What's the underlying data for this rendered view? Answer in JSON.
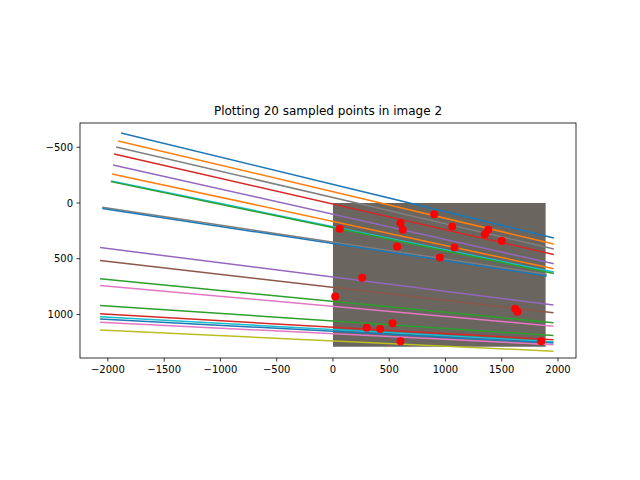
{
  "chart_data": {
    "type": "line",
    "title": "Plotting 20 sampled points in image 2",
    "xlim": [
      -2248,
      2160
    ],
    "ylim": [
      1391,
      -718
    ],
    "xticks": [
      -2000,
      -1500,
      -1000,
      -500,
      0,
      500,
      1000,
      1500,
      2000
    ],
    "yticks": [
      -500,
      0,
      500,
      1000
    ],
    "grid": false,
    "image_extent": {
      "x": [
        0,
        1890
      ],
      "y": [
        0,
        1290
      ]
    },
    "series": [
      {
        "color": "#1f77b4",
        "x": [
          -1883,
          1963
        ],
        "values": [
          -628,
          314
        ]
      },
      {
        "color": "#ff7f0e",
        "x": [
          -1909,
          1963
        ],
        "values": [
          -557,
          368
        ]
      },
      {
        "color": "#7f7f7f",
        "x": [
          -1927,
          1963
        ],
        "values": [
          -503,
          413
        ]
      },
      {
        "color": "#d62728",
        "x": [
          -1945,
          1963
        ],
        "values": [
          -440,
          462
        ]
      },
      {
        "color": "#9467bd",
        "x": [
          -1955,
          1963
        ],
        "values": [
          -341,
          545
        ]
      },
      {
        "color": "#ff7f0e",
        "x": [
          -1963,
          1963
        ],
        "values": [
          -260,
          590
        ]
      },
      {
        "color": "#17becf",
        "x": [
          -1971,
          1963
        ],
        "values": [
          -197,
          620
        ]
      },
      {
        "color": "#2ca02c",
        "x": [
          -1975,
          1963
        ],
        "values": [
          -192,
          632
        ]
      },
      {
        "color": "#7f7f7f",
        "x": [
          -2050,
          1900
        ],
        "values": [
          38,
          640
        ]
      },
      {
        "color": "#1f77b4",
        "x": [
          -2050,
          1900
        ],
        "values": [
          50,
          655
        ]
      },
      {
        "color": "#9467bd",
        "x": [
          -2070,
          1960
        ],
        "values": [
          400,
          915
        ]
      },
      {
        "color": "#8c564b",
        "x": [
          -2070,
          1960
        ],
        "values": [
          515,
          985
        ]
      },
      {
        "color": "#2ca02c",
        "x": [
          -2070,
          1960
        ],
        "values": [
          680,
          1075
        ]
      },
      {
        "color": "#e377c2",
        "x": [
          -2070,
          1960
        ],
        "values": [
          740,
          1105
        ]
      },
      {
        "color": "#2ca02c",
        "x": [
          -2070,
          1960
        ],
        "values": [
          920,
          1190
        ]
      },
      {
        "color": "#d62728",
        "x": [
          -2070,
          1960
        ],
        "values": [
          995,
          1228
        ]
      },
      {
        "color": "#17becf",
        "x": [
          -2070,
          1960
        ],
        "values": [
          1020,
          1245
        ]
      },
      {
        "color": "#1f77b4",
        "x": [
          -2070,
          1960
        ],
        "values": [
          1040,
          1256
        ]
      },
      {
        "color": "#e377c2",
        "x": [
          -2070,
          1960
        ],
        "values": [
          1070,
          1272
        ]
      },
      {
        "color": "#bcbd22",
        "x": [
          -2070,
          1960
        ],
        "values": [
          1140,
          1330
        ]
      },
      {
        "type": "scatter",
        "color": "#ff0000",
        "marker": "o",
        "x": [
          900,
          600,
          620,
          1060,
          1380,
          1350,
          1500,
          570,
          950,
          1080,
          260,
          20,
          1620,
          1640,
          300,
          420,
          530,
          600,
          1850,
          60
        ],
        "values": [
          100,
          180,
          240,
          210,
          240,
          280,
          340,
          390,
          490,
          400,
          670,
          840,
          950,
          975,
          1120,
          1130,
          1080,
          1240,
          1240,
          230
        ]
      }
    ]
  }
}
